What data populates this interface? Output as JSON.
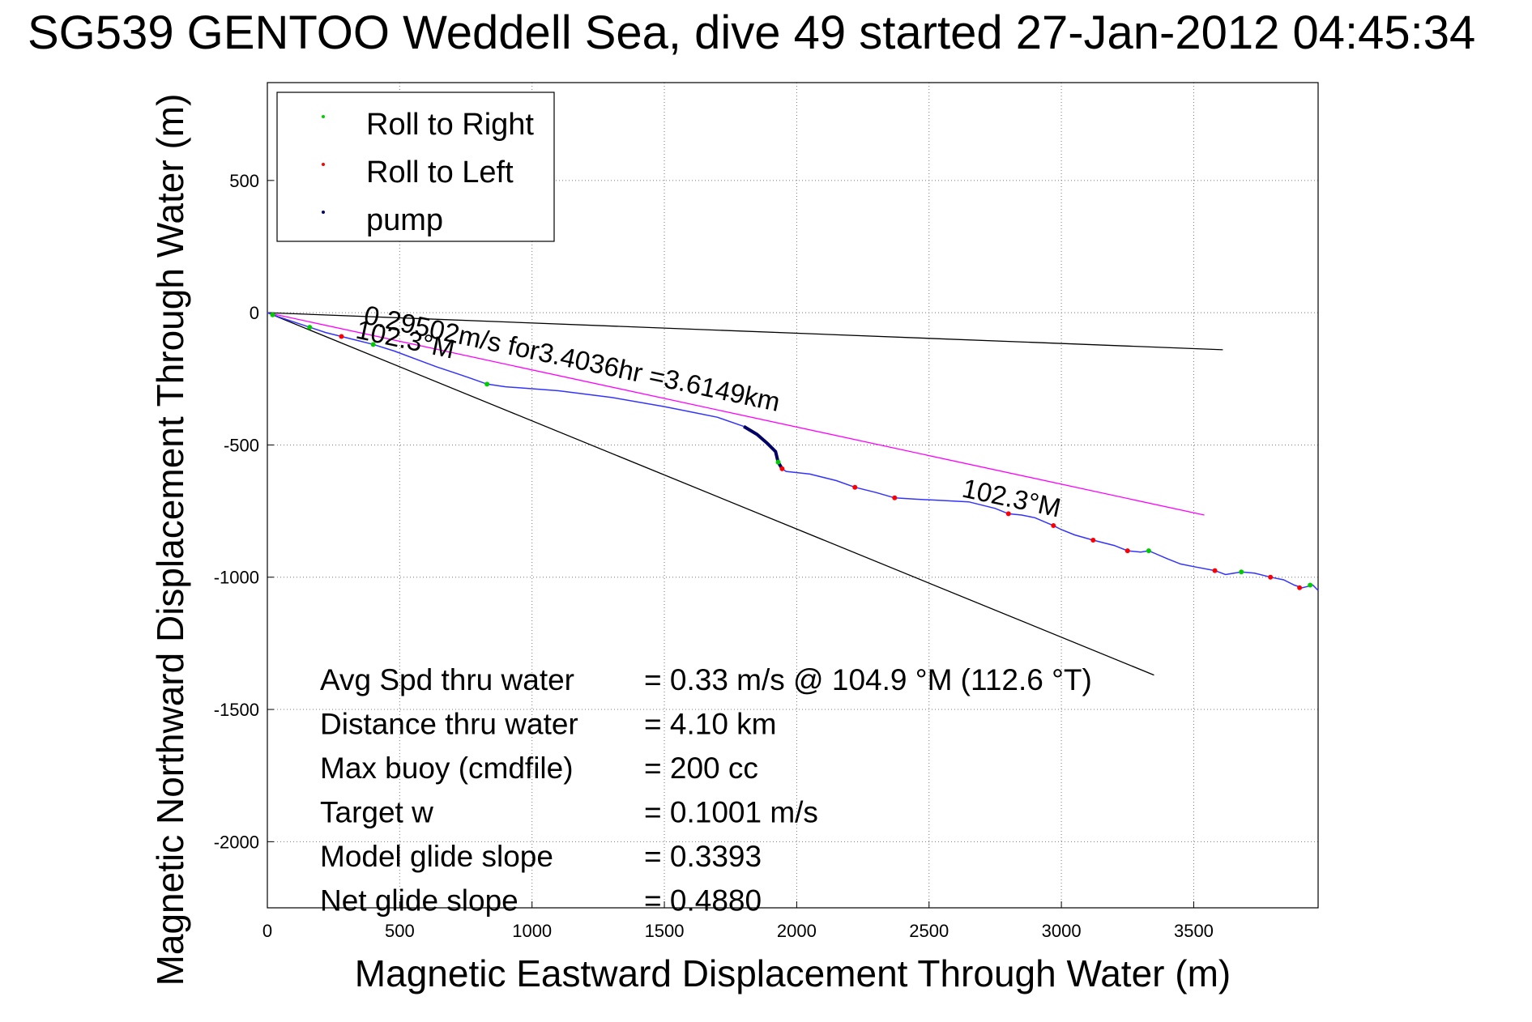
{
  "title": "SG539 GENTOO Weddell Sea, dive 49 started 27-Jan-2012 04:45:34",
  "chart_data": {
    "type": "line",
    "xlabel": "Magnetic Eastward Displacement Through Water (m)",
    "ylabel": "Magnetic Northward Displacement Through Water (m)",
    "xlim": [
      0,
      3970
    ],
    "ylim": [
      -2250,
      870
    ],
    "x_ticks": [
      "0",
      "500",
      "1000",
      "1500",
      "2000",
      "2500",
      "3000",
      "3500"
    ],
    "y_ticks": [
      "500",
      "0",
      "-500",
      "-1000",
      "-1500",
      "-2000"
    ],
    "grid": true,
    "legend": {
      "position": "top-left",
      "entries": [
        {
          "label": "Roll to Right",
          "color": "#00cc00"
        },
        {
          "label": "Roll to Left",
          "color": "#ff0000"
        },
        {
          "label": "pump",
          "color": "#000066"
        }
      ]
    },
    "track": {
      "color": "#3333ff",
      "x": [
        0,
        40,
        100,
        160,
        220,
        280,
        340,
        400,
        480,
        560,
        640,
        700,
        760,
        830,
        900,
        1100,
        1300,
        1500,
        1600,
        1700,
        1800,
        1850,
        1890,
        1920,
        1930,
        1945,
        1960,
        2050,
        2150,
        2220,
        2300,
        2370,
        2450,
        2550,
        2650,
        2750,
        2800,
        2850,
        2900,
        2970,
        3000,
        3050,
        3120,
        3200,
        3250,
        3300,
        3330,
        3400,
        3450,
        3500,
        3580,
        3620,
        3680,
        3730,
        3790,
        3840,
        3880,
        3910,
        3930,
        3950,
        3970
      ],
      "y": [
        0,
        -15,
        -35,
        -55,
        -75,
        -90,
        -105,
        -120,
        -145,
        -175,
        -205,
        -225,
        -245,
        -270,
        -280,
        -295,
        -320,
        -355,
        -375,
        -395,
        -430,
        -460,
        -495,
        -525,
        -565,
        -590,
        -600,
        -610,
        -635,
        -660,
        -680,
        -700,
        -705,
        -710,
        -715,
        -740,
        -760,
        -765,
        -775,
        -805,
        -820,
        -840,
        -860,
        -880,
        -900,
        -905,
        -900,
        -930,
        -950,
        -960,
        -975,
        -990,
        -980,
        -985,
        -1000,
        -1010,
        -1030,
        -1040,
        -1035,
        -1030,
        -1050
      ]
    },
    "pump_segment": {
      "x": [
        1800,
        1850,
        1890,
        1920,
        1930,
        1945
      ],
      "y": [
        -430,
        -460,
        -495,
        -525,
        -565,
        -590
      ]
    },
    "roll_right_markers": {
      "x": [
        20,
        160,
        400,
        830,
        1930,
        3330,
        3680,
        3940
      ],
      "y": [
        -8,
        -55,
        -120,
        -270,
        -565,
        -900,
        -980,
        -1030
      ]
    },
    "roll_left_markers": {
      "x": [
        280,
        1945,
        2220,
        2370,
        2800,
        2970,
        3120,
        3250,
        3580,
        3790,
        3900
      ],
      "y": [
        -90,
        -590,
        -660,
        -700,
        -760,
        -805,
        -860,
        -900,
        -975,
        -1000,
        -1040
      ]
    },
    "reference_lines": [
      {
        "name": "upper",
        "color": "#000000",
        "x": [
          0,
          3610
        ],
        "y": [
          0,
          -140
        ]
      },
      {
        "name": "lower",
        "color": "#000000",
        "x": [
          0,
          3350
        ],
        "y": [
          0,
          -1370
        ]
      },
      {
        "name": "net",
        "color": "#ff00ff",
        "x": [
          0,
          3540
        ],
        "y": [
          0,
          -765
        ]
      }
    ],
    "annotations": [
      {
        "text": "0.29502m/s for3.4036hr =3.6149km",
        "x": 360,
        "y": -40,
        "rotate": 12
      },
      {
        "text": "102.3°M",
        "x": 330,
        "y": -95,
        "rotate": 12
      },
      {
        "text": "102.3°M",
        "x": 2620,
        "y": -695,
        "rotate": 12
      }
    ],
    "stats": [
      {
        "label": "Avg Spd thru water",
        "value": "=  0.33 m/s @ 104.9 °M (112.6 °T)"
      },
      {
        "label": "Distance thru water",
        "value": "=  4.10 km"
      },
      {
        "label": "Max buoy (cmdfile)",
        "value": "= 200 cc"
      },
      {
        "label": "Target w",
        "value": "= 0.1001 m/s"
      },
      {
        "label": "Model glide slope",
        "value": "= 0.3393"
      },
      {
        "label": "Net glide slope",
        "value": "= 0.4880"
      }
    ]
  }
}
